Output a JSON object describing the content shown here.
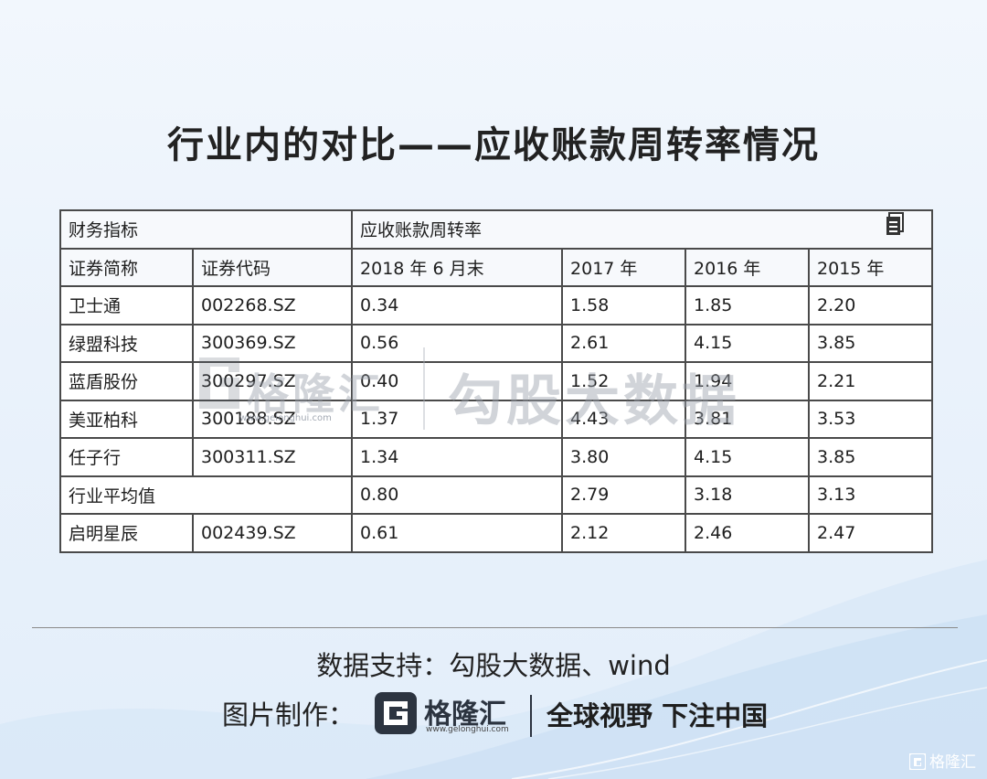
{
  "title": "行业内的对比——应收账款周转率情况",
  "table": {
    "header1": {
      "c1": "财务指标",
      "c2": "应收账款周转率"
    },
    "header2": [
      "证券简称",
      "证券代码",
      "2018 年 6 月末",
      "2017 年",
      "2016 年",
      "2015 年"
    ],
    "rows": [
      [
        "卫士通",
        "002268.SZ",
        "0.34",
        "1.58",
        "1.85",
        "2.20"
      ],
      [
        "绿盟科技",
        "300369.SZ",
        "0.56",
        "2.61",
        "4.15",
        "3.85"
      ],
      [
        "蓝盾股份",
        "300297.SZ",
        "0.40",
        "1.52",
        "1.94",
        "2.21"
      ],
      [
        "美亚柏科",
        "300188.SZ",
        "1.37",
        "4.43",
        "3.81",
        "3.53"
      ],
      [
        "任子行",
        "300311.SZ",
        "1.34",
        "3.80",
        "4.15",
        "3.85"
      ]
    ],
    "average": {
      "label": "行业平均值",
      "values": [
        "0.80",
        "2.79",
        "3.18",
        "3.13"
      ]
    },
    "last": [
      "启明星辰",
      "002439.SZ",
      "0.61",
      "2.12",
      "2.46",
      "2.47"
    ]
  },
  "watermark": {
    "brand": "格隆汇",
    "site": "www.gelonghui.com",
    "text": "勾股大数据"
  },
  "footer": {
    "source": "数据支持：勾股大数据、wind",
    "credit_label": "图片制作：",
    "brand_name": "格隆汇",
    "brand_site": "www.gelonghui.com",
    "slogan": "全球视野 下注中国",
    "corner_mark": "格隆汇"
  },
  "colors": {
    "background": "#eaf2fb",
    "table_border": "#4a4a4a",
    "brand_dark": "#2c3440"
  }
}
